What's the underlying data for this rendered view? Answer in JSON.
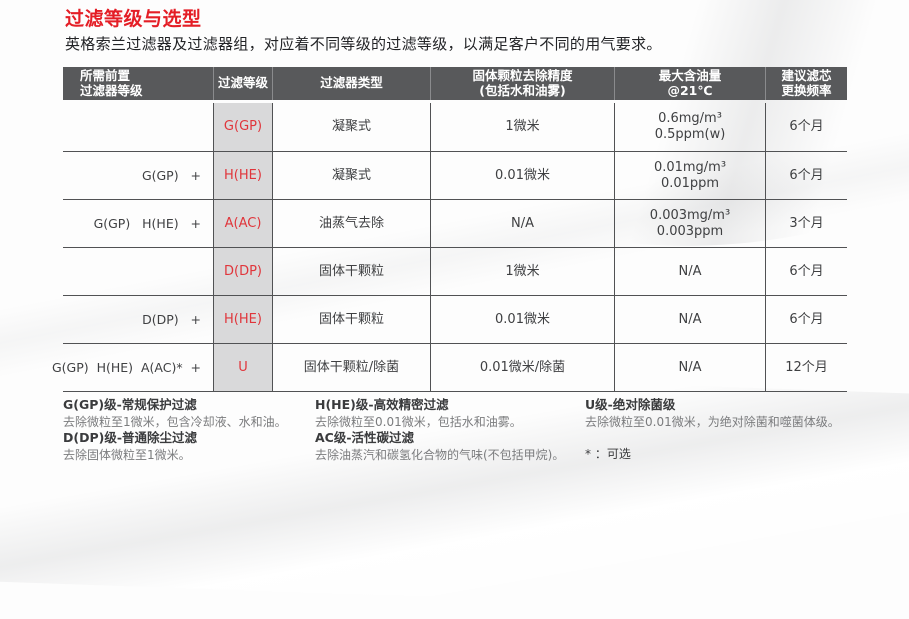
{
  "page": {
    "title": "过滤等级与选型",
    "subtitle": "英格索兰过滤器及过滤器组，对应着不同等级的过滤等级，以满足客户不同的用气要求。"
  },
  "colors": {
    "accent_red": "#e41e26",
    "header_bg": "#58595b",
    "grade_col_bg": "#d9d9da"
  },
  "table": {
    "headers": [
      {
        "l1": "所需前置",
        "l2": "过滤器等级"
      },
      {
        "l1": "过滤等级",
        "l2": ""
      },
      {
        "l1": "过滤器类型",
        "l2": ""
      },
      {
        "l1": "固体颗粒去除精度",
        "l2": "(包括水和油雾)"
      },
      {
        "l1": "最大含油量",
        "l2": "@21℃"
      },
      {
        "l1": "建议滤芯",
        "l2": "更换频率"
      }
    ],
    "rows": [
      {
        "pre": "",
        "grade": "G(GP)",
        "type": "凝聚式",
        "precision": "1微米",
        "oil1": "0.6mg/m³",
        "oil2": "0.5ppm(w)",
        "freq": "6个月"
      },
      {
        "pre": "G(GP)   +",
        "grade": "H(HE)",
        "type": "凝聚式",
        "precision": "0.01微米",
        "oil1": "0.01mg/m³",
        "oil2": "0.01ppm",
        "freq": "6个月"
      },
      {
        "pre": "G(GP)   H(HE)   +",
        "grade": "A(AC)",
        "type": "油蒸气去除",
        "precision": "N/A",
        "oil1": "0.003mg/m³",
        "oil2": "0.003ppm",
        "freq": "3个月"
      },
      {
        "pre": "",
        "grade": "D(DP)",
        "type": "固体干颗粒",
        "precision": "1微米",
        "oil1": "N/A",
        "freq": "6个月"
      },
      {
        "pre": "D(DP)   +",
        "grade": "H(HE)",
        "type": "固体干颗粒",
        "precision": "0.01微米",
        "oil1": "N/A",
        "freq": "6个月"
      },
      {
        "pre": "G(GP)  H(HE)  A(AC)*  +",
        "grade": "U",
        "type": "固体干颗粒/除菌",
        "precision": "0.01微米/除菌",
        "oil1": "N/A",
        "freq": "12个月"
      }
    ]
  },
  "notes": {
    "col1": {
      "t1": "G(GP)级-常规保护过滤",
      "d1": "去除微粒至1微米，包含冷却液、水和油。",
      "t2": "D(DP)级-普通除尘过滤",
      "d2": "去除固体微粒至1微米。"
    },
    "col2": {
      "t1": "H(HE)级-高效精密过滤",
      "d1": "去除微粒至0.01微米，包括水和油雾。",
      "t2": "AC级-活性碳过滤",
      "d2": "去除油蒸汽和碳氢化合物的气味(不包括甲烷)。"
    },
    "col3": {
      "t1": "U级-绝对除菌级",
      "d1": "去除微粒至0.01微米，为绝对除菌和噬菌体级。",
      "optional": "* ：可选"
    }
  }
}
